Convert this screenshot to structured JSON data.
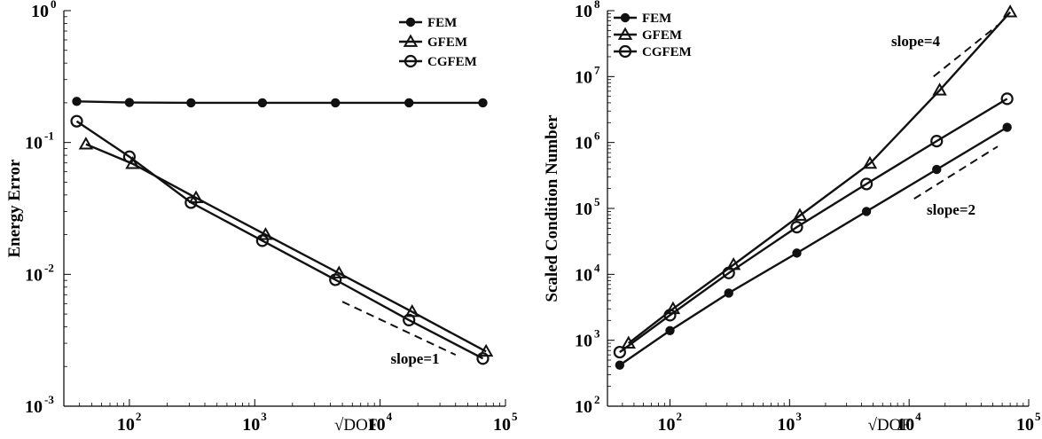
{
  "chart_data": [
    {
      "type": "line",
      "scale": {
        "x": "log",
        "y": "log"
      },
      "xlim": [
        30,
        100000
      ],
      "ylim": [
        0.001,
        1
      ],
      "xlabel": "√DOF",
      "ylabel": "Energy Error",
      "x_ticks": [
        {
          "base": "10",
          "exp": "2",
          "value": 100
        },
        {
          "base": "10",
          "exp": "3",
          "value": 1000
        },
        {
          "base": "10",
          "exp": "4",
          "value": 10000
        },
        {
          "base": "10",
          "exp": "5",
          "value": 100000
        }
      ],
      "y_ticks": [
        {
          "base": "10",
          "exp": "-3",
          "value": 0.001
        },
        {
          "base": "10",
          "exp": "-2",
          "value": 0.01
        },
        {
          "base": "10",
          "exp": "-1",
          "value": 0.1
        },
        {
          "base": "10",
          "exp": "0",
          "value": 1
        }
      ],
      "legend": {
        "position": "top-right"
      },
      "series": [
        {
          "name": "FEM",
          "marker": "filled-circle",
          "x": [
            38,
            100,
            310,
            1150,
            4400,
            17000,
            66000
          ],
          "y": [
            0.205,
            0.201,
            0.2,
            0.2,
            0.2,
            0.2,
            0.2
          ]
        },
        {
          "name": "GFEM",
          "marker": "triangle",
          "x": [
            45,
            106,
            340,
            1220,
            4700,
            18000,
            70000
          ],
          "y": [
            0.097,
            0.069,
            0.038,
            0.02,
            0.0102,
            0.0052,
            0.0026
          ]
        },
        {
          "name": "CGFEM",
          "marker": "open-circle",
          "x": [
            38,
            100,
            310,
            1150,
            4400,
            17000,
            66000
          ],
          "y": [
            0.145,
            0.078,
            0.035,
            0.018,
            0.0091,
            0.0045,
            0.0023
          ]
        }
      ],
      "reference_lines": [
        {
          "label": "slope=1",
          "slope": 1,
          "x": [
            5000,
            40000
          ],
          "y": [
            0.0062,
            0.00245
          ]
        }
      ]
    },
    {
      "type": "line",
      "scale": {
        "x": "log",
        "y": "log"
      },
      "xlim": [
        30,
        100000
      ],
      "ylim": [
        100,
        100000000
      ],
      "xlabel": "√DOF",
      "ylabel": "Scaled Condition Number",
      "x_ticks": [
        {
          "base": "10",
          "exp": "2",
          "value": 100
        },
        {
          "base": "10",
          "exp": "3",
          "value": 1000
        },
        {
          "base": "10",
          "exp": "4",
          "value": 10000
        },
        {
          "base": "10",
          "exp": "5",
          "value": 100000
        }
      ],
      "y_ticks": [
        {
          "base": "10",
          "exp": "2",
          "value": 100
        },
        {
          "base": "10",
          "exp": "3",
          "value": 1000
        },
        {
          "base": "10",
          "exp": "4",
          "value": 10000
        },
        {
          "base": "10",
          "exp": "5",
          "value": 100000
        },
        {
          "base": "10",
          "exp": "6",
          "value": 1000000
        },
        {
          "base": "10",
          "exp": "7",
          "value": 10000000
        },
        {
          "base": "10",
          "exp": "8",
          "value": 100000000
        }
      ],
      "legend": {
        "position": "top-left"
      },
      "series": [
        {
          "name": "FEM",
          "marker": "filled-circle",
          "x": [
            38,
            100,
            310,
            1150,
            4400,
            17000,
            66000
          ],
          "y": [
            420,
            1400,
            5200,
            21000,
            90000,
            390000,
            1700000
          ]
        },
        {
          "name": "GFEM",
          "marker": "triangle",
          "x": [
            45,
            106,
            340,
            1220,
            4700,
            18000,
            70000
          ],
          "y": [
            900,
            3000,
            14000,
            78000,
            480000,
            6200000,
            95000000
          ]
        },
        {
          "name": "CGFEM",
          "marker": "open-circle",
          "x": [
            38,
            100,
            310,
            1150,
            4400,
            17000,
            66000
          ],
          "y": [
            660,
            2400,
            10500,
            52000,
            235000,
            1050000,
            4600000
          ]
        }
      ],
      "reference_lines": [
        {
          "label": "slope=4",
          "slope": 4,
          "x": [
            16000,
            55000
          ],
          "y": [
            10000000,
            60000000
          ]
        },
        {
          "label": "slope=2",
          "slope": 2,
          "x": [
            11000,
            55000
          ],
          "y": [
            140000,
            870000
          ]
        }
      ]
    }
  ]
}
